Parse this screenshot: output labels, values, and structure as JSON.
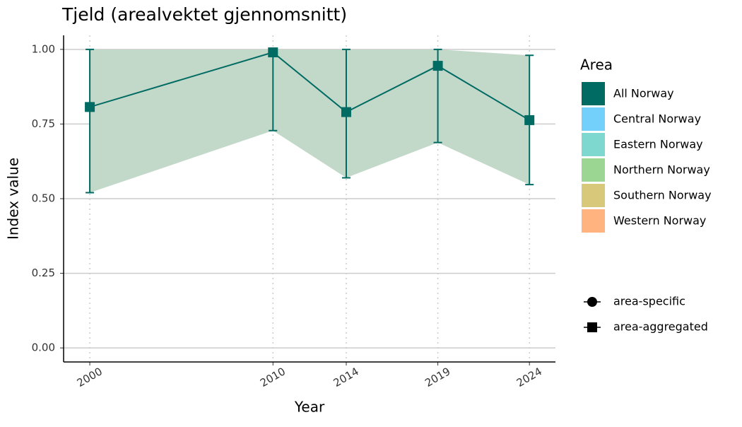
{
  "chart_data": {
    "type": "line",
    "title": "Tjeld (arealvektet gjennomsnitt)",
    "x_label": "Year",
    "y_label": "Index value",
    "x": [
      2000,
      2010,
      2014,
      2019,
      2024
    ],
    "series": [
      {
        "name": "All Norway",
        "color": "#006b63",
        "ribbon_color": "#c2d8c9",
        "marker": "square",
        "values": [
          0.807,
          0.99,
          0.79,
          0.945,
          0.763
        ],
        "lower": [
          0.52,
          0.728,
          0.57,
          0.688,
          0.547
        ],
        "upper": [
          1.0,
          1.0,
          1.0,
          1.0,
          0.98
        ]
      },
      {
        "name": "Central Norway",
        "color": "#73d0fa",
        "values": [
          null,
          null,
          null,
          null,
          null
        ]
      },
      {
        "name": "Eastern Norway",
        "color": "#7fd8d0",
        "values": [
          null,
          null,
          null,
          null,
          null
        ]
      },
      {
        "name": "Northern Norway",
        "color": "#9cd693",
        "values": [
          null,
          null,
          null,
          null,
          null
        ]
      },
      {
        "name": "Southern Norway",
        "color": "#d8c97a",
        "values": [
          null,
          null,
          null,
          null,
          null
        ]
      },
      {
        "name": "Western Norway",
        "color": "#ffb37f",
        "values": [
          null,
          null,
          null,
          null,
          null
        ]
      }
    ],
    "legend_title": "Area",
    "shape_legend": [
      {
        "name": "area-specific",
        "shape": "circle"
      },
      {
        "name": "area-aggregated",
        "shape": "square"
      }
    ],
    "xlim": [
      1998.57,
      2025.42
    ],
    "ylim": [
      -0.047,
      1.047
    ],
    "xticks": [
      2000,
      2010,
      2014,
      2019,
      2024
    ],
    "yticks": [
      {
        "value": 0,
        "label": "0.00"
      },
      {
        "value": 0.25,
        "label": "0.25"
      },
      {
        "value": 0.5,
        "label": "0.50"
      },
      {
        "value": 0.75,
        "label": "0.75"
      },
      {
        "value": 1,
        "label": "1.00"
      }
    ],
    "grid": true
  }
}
